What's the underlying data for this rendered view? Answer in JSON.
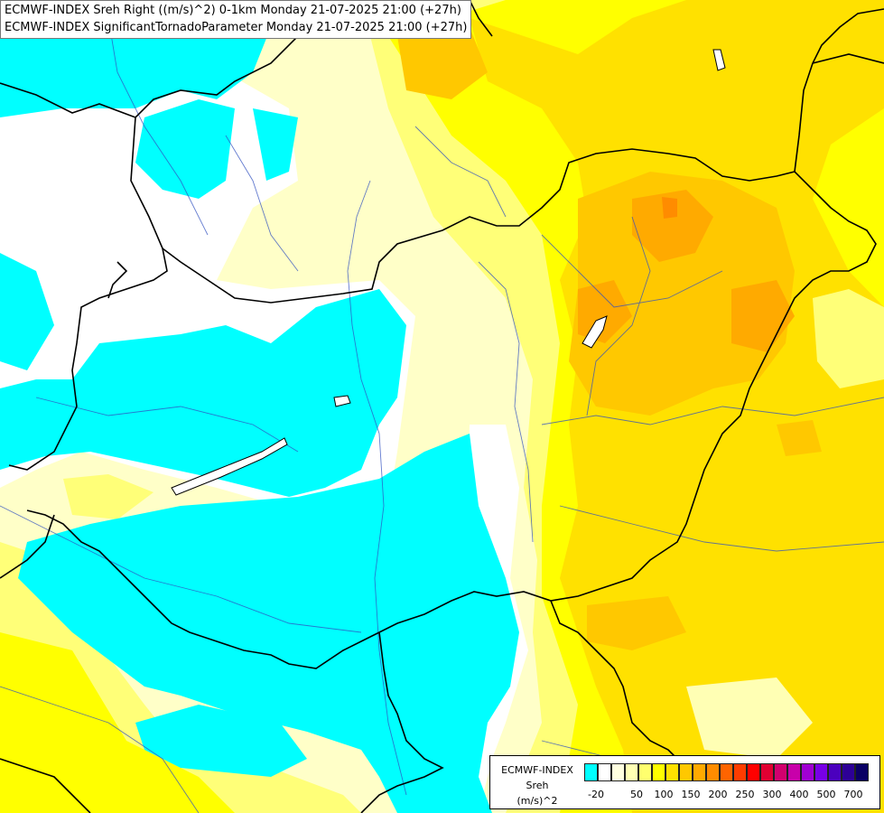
{
  "title": {
    "line1": "ECMWF-INDEX Sreh Right ((m/s)^2) 0-1km Monday 21-07-2025 21:00 (+27h)",
    "line2": "ECMWF-INDEX SignificantTornadoParameter Monday 21-07-2025 21:00 (+27h)"
  },
  "legend": {
    "source": "ECMWF-INDEX",
    "name": "Sreh",
    "unit": "(m/s)^2",
    "colors": [
      "#00ffff",
      "#ffffff",
      "#ffffe0",
      "#ffffb4",
      "#ffff6e",
      "#ffff00",
      "#ffe100",
      "#ffc800",
      "#ffaa00",
      "#ff8c00",
      "#ff6400",
      "#ff3c00",
      "#ff0000",
      "#e10032",
      "#d2006e",
      "#c800aa",
      "#a000d2",
      "#7800e6",
      "#4b00be",
      "#2d0096",
      "#0a0064"
    ],
    "tick_labels": [
      "-20",
      "50",
      "100",
      "150",
      "200",
      "250",
      "300",
      "400",
      "500",
      "700"
    ]
  },
  "map": {
    "field_colors": {
      "cyan": "#00ffff",
      "white": "#ffffff",
      "pale": "#ffffc8",
      "light_yellow": "#ffff78",
      "yellow": "#ffff00",
      "gold": "#ffe100",
      "orange": "#ffc800",
      "dark_orange": "#ffaa00"
    },
    "border_color": "#000000",
    "river_color": "#3050c0"
  }
}
